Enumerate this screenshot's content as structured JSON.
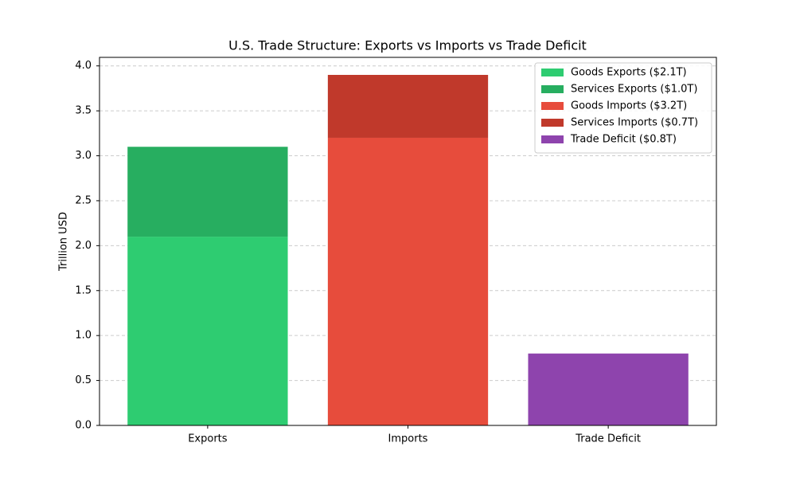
{
  "chart_data": {
    "type": "stacked-bar",
    "title": "U.S. Trade Structure: Exports vs Imports vs Trade Deficit",
    "y_label": "Trillion USD",
    "categories": [
      "Exports",
      "Imports",
      "Trade Deficit"
    ],
    "series": [
      {
        "name": "Goods Exports ($2.1T)",
        "color": "#2ecc71",
        "values": [
          2.1,
          null,
          null
        ]
      },
      {
        "name": "Services Exports ($1.0T)",
        "color": "#27ae60",
        "values": [
          1.0,
          null,
          null
        ]
      },
      {
        "name": "Goods Imports ($3.2T)",
        "color": "#e74c3c",
        "values": [
          null,
          3.2,
          null
        ]
      },
      {
        "name": "Services Imports ($0.7T)",
        "color": "#c0392b",
        "values": [
          null,
          0.7,
          null
        ]
      },
      {
        "name": "Trade Deficit ($0.8T)",
        "color": "#8e44ad",
        "values": [
          null,
          null,
          0.8
        ]
      }
    ],
    "ylim": [
      0,
      4.095
    ],
    "yticks": [
      {
        "value": 0,
        "label": "0.0"
      },
      0.5,
      {
        "value": 1,
        "label": "1.0"
      },
      1.5,
      {
        "value": 2,
        "label": "2.0"
      },
      2.5,
      {
        "value": 3,
        "label": "3.0"
      },
      3.5,
      {
        "value": 4,
        "label": "4.0"
      }
    ],
    "grid": true,
    "legend": "upper-right"
  }
}
